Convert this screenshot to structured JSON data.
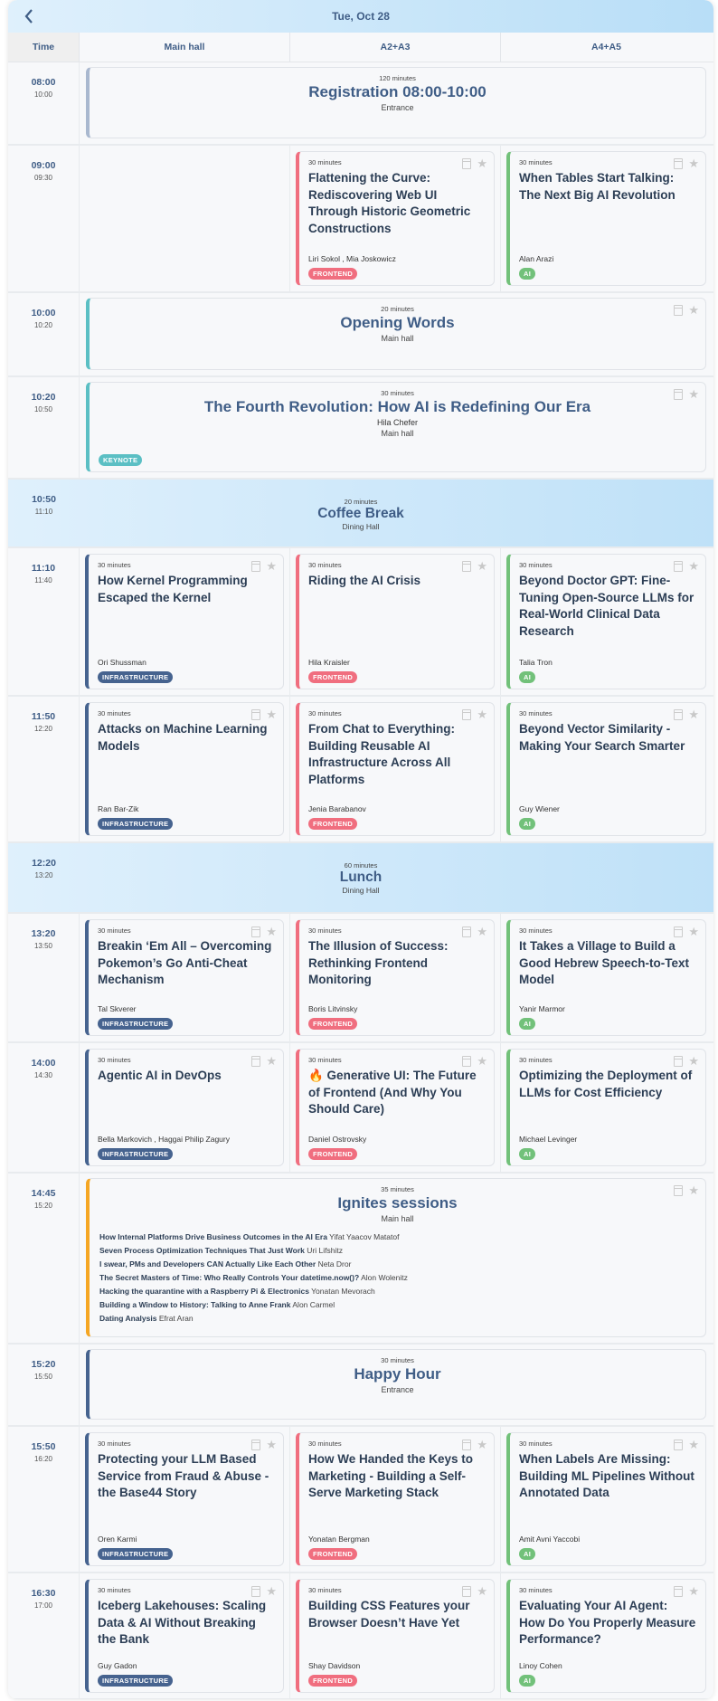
{
  "header": {
    "title": "Tue, Oct 28",
    "back_icon": "chevron-left-icon"
  },
  "columns": [
    "Time",
    "Main hall",
    "A2+A3",
    "A4+A5"
  ],
  "tag_colors": {
    "INFRASTRUCTURE": "#46638f",
    "FRONTEND": "#f06e7f",
    "AI": "#72c17a",
    "KEYNOTE": "#5bbfc4"
  },
  "rows": [
    {
      "type": "full",
      "start": "08:00",
      "end": "10:00",
      "minutes": "120 minutes",
      "title": "Registration 08:00-10:00",
      "location": "Entrance",
      "color": "#a9b8cf",
      "icons": false
    },
    {
      "type": "tracks",
      "start": "09:00",
      "end": "09:30",
      "sessions": [
        null,
        {
          "minutes": "30 minutes",
          "title": "Flattening the Curve: Rediscovering Web UI Through Historic Geometric Constructions",
          "speakers": "Liri Sokol , Mia Joskowicz",
          "tag": "FRONTEND"
        },
        {
          "minutes": "30 minutes",
          "title": "When Tables Start Talking: The Next Big AI Revolution",
          "speakers": "Alan Arazi",
          "tag": "AI"
        }
      ]
    },
    {
      "type": "full",
      "start": "10:00",
      "end": "10:20",
      "minutes": "20 minutes",
      "title": "Opening Words",
      "location": "Main hall",
      "color": "#5bbfc4",
      "icons": true
    },
    {
      "type": "full",
      "start": "10:20",
      "end": "10:50",
      "minutes": "30 minutes",
      "title": "The Fourth Revolution: How AI is Redefining Our Era",
      "speaker": "Hila Chefer",
      "location": "Main hall",
      "tag": "KEYNOTE",
      "color": "#5bbfc4",
      "icons": true
    },
    {
      "type": "break",
      "start": "10:50",
      "end": "11:10",
      "minutes": "20 minutes",
      "title": "Coffee Break",
      "location": "Dining Hall"
    },
    {
      "type": "tracks",
      "start": "11:10",
      "end": "11:40",
      "sessions": [
        {
          "minutes": "30 minutes",
          "title": "How Kernel Programming Escaped the Kernel",
          "speakers": "Ori Shussman",
          "tag": "INFRASTRUCTURE"
        },
        {
          "minutes": "30 minutes",
          "title": "Riding the AI Crisis",
          "speakers": "Hila Kraisler",
          "tag": "FRONTEND"
        },
        {
          "minutes": "30 minutes",
          "title": "Beyond Doctor GPT: Fine-Tuning Open-Source LLMs for Real-World Clinical Data Research",
          "speakers": "Talia Tron",
          "tag": "AI"
        }
      ]
    },
    {
      "type": "tracks",
      "start": "11:50",
      "end": "12:20",
      "sessions": [
        {
          "minutes": "30 minutes",
          "title": "Attacks on Machine Learning Models",
          "speakers": "Ran Bar-Zik",
          "tag": "INFRASTRUCTURE"
        },
        {
          "minutes": "30 minutes",
          "title": "From Chat to Everything: Building Reusable AI Infrastructure Across All Platforms",
          "speakers": "Jenia Barabanov",
          "tag": "FRONTEND"
        },
        {
          "minutes": "30 minutes",
          "title": "Beyond Vector Similarity - Making Your Search Smarter",
          "speakers": "Guy Wiener",
          "tag": "AI"
        }
      ]
    },
    {
      "type": "break",
      "start": "12:20",
      "end": "13:20",
      "minutes": "60 minutes",
      "title": "Lunch",
      "location": "Dining Hall"
    },
    {
      "type": "tracks",
      "start": "13:20",
      "end": "13:50",
      "sessions": [
        {
          "minutes": "30 minutes",
          "title": "Breakin ‘Em All – Overcoming Pokemon’s Go Anti-Cheat Mechanism",
          "speakers": "Tal Skverer",
          "tag": "INFRASTRUCTURE"
        },
        {
          "minutes": "30 minutes",
          "title": "The Illusion of Success: Rethinking Frontend Monitoring",
          "speakers": "Boris Litvinsky",
          "tag": "FRONTEND"
        },
        {
          "minutes": "30 minutes",
          "title": "It Takes a Village to Build a Good Hebrew Speech-to-Text Model",
          "speakers": "Yanir Marmor",
          "tag": "AI"
        }
      ]
    },
    {
      "type": "tracks",
      "start": "14:00",
      "end": "14:30",
      "sessions": [
        {
          "minutes": "30 minutes",
          "title": "Agentic AI in DevOps",
          "speakers": "Bella Markovich , Haggai Philip Zagury",
          "tag": "INFRASTRUCTURE"
        },
        {
          "minutes": "30 minutes",
          "title": "🔥 Generative UI: The Future of Frontend (And Why You Should Care)",
          "speakers": "Daniel Ostrovsky",
          "tag": "FRONTEND"
        },
        {
          "minutes": "30 minutes",
          "title": "Optimizing the Deployment of LLMs for Cost Efficiency",
          "speakers": "Michael Levinger",
          "tag": "AI"
        }
      ]
    },
    {
      "type": "full",
      "start": "14:45",
      "end": "15:20",
      "minutes": "35 minutes",
      "title": "Ignites sessions",
      "location": "Main hall",
      "color": "#f5a623",
      "icons": true,
      "talks": [
        {
          "title": "How Internal Platforms Drive Business Outcomes in the AI Era",
          "speaker": "Yifat Yaacov Matatof"
        },
        {
          "title": "Seven Process Optimization Techniques That Just Work",
          "speaker": "Uri Lifshitz"
        },
        {
          "title": "I swear, PMs and Developers CAN Actually Like Each Other",
          "speaker": "Neta Dror"
        },
        {
          "title": "The Secret Masters of Time: Who Really Controls Your datetime.now()?",
          "speaker": "Alon Wolenitz"
        },
        {
          "title": "Hacking the quarantine with a Raspberry Pi & Electronics",
          "speaker": "Yonatan Mevorach"
        },
        {
          "title": "Building a Window to History: Talking to Anne Frank",
          "speaker": "Alon Carmel"
        },
        {
          "title": "Dating Analysis",
          "speaker": "Efrat Aran"
        }
      ]
    },
    {
      "type": "full",
      "start": "15:20",
      "end": "15:50",
      "minutes": "30 minutes",
      "title": "Happy Hour",
      "location": "Entrance",
      "color": "#46638f",
      "icons": false
    },
    {
      "type": "tracks",
      "start": "15:50",
      "end": "16:20",
      "sessions": [
        {
          "minutes": "30 minutes",
          "title": "Protecting your LLM Based Service from Fraud & Abuse - the Base44 Story",
          "speakers": "Oren Karmi",
          "tag": "INFRASTRUCTURE"
        },
        {
          "minutes": "30 minutes",
          "title": "How We Handed the Keys to Marketing - Building a Self-Serve Marketing Stack",
          "speakers": "Yonatan Bergman",
          "tag": "FRONTEND"
        },
        {
          "minutes": "30 minutes",
          "title": "When Labels Are Missing: Building ML Pipelines Without Annotated Data",
          "speakers": "Amit Avni Yaccobi",
          "tag": "AI"
        }
      ]
    },
    {
      "type": "tracks",
      "start": "16:30",
      "end": "17:00",
      "sessions": [
        {
          "minutes": "30 minutes",
          "title": "Iceberg Lakehouses: Scaling Data & AI Without Breaking the Bank",
          "speakers": "Guy Gadon",
          "tag": "INFRASTRUCTURE"
        },
        {
          "minutes": "30 minutes",
          "title": "Building CSS Features your Browser Doesn’t Have Yet",
          "speakers": "Shay Davidson",
          "tag": "FRONTEND"
        },
        {
          "minutes": "30 minutes",
          "title": "Evaluating Your AI Agent: How Do You Properly Measure Performance?",
          "speakers": "Linoy Cohen",
          "tag": "AI"
        }
      ]
    }
  ]
}
